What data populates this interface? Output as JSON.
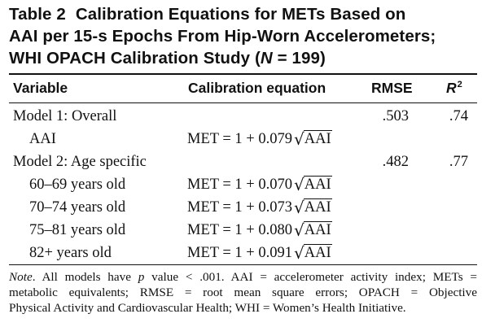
{
  "title": {
    "label": "Table 2",
    "line1": "Calibration Equations for METs Based on",
    "line2": "AAI per 15-s Epochs From Hip-Worn Accelerometers;",
    "line3_prefix": "WHI OPACH Calibration Study (",
    "line3_var": "N",
    "line3_suffix": " = 199)"
  },
  "header": {
    "variable": "Variable",
    "equation": "Calibration equation",
    "rmse": "RMSE",
    "r2_base": "R",
    "r2_sup": "2"
  },
  "rows": [
    {
      "variable": "Model 1: Overall",
      "equation_prefix": "",
      "radicand": "",
      "rmse": ".503",
      "r2": ".74"
    },
    {
      "variable": "AAI",
      "equation_prefix": "MET = 1 + 0.079",
      "radicand": "AAI",
      "rmse": "",
      "r2": ""
    },
    {
      "variable": "Model 2: Age specific",
      "equation_prefix": "",
      "radicand": "",
      "rmse": ".482",
      "r2": ".77"
    },
    {
      "variable": "60–69 years old",
      "equation_prefix": "MET = 1 + 0.070",
      "radicand": "AAI",
      "rmse": "",
      "r2": ""
    },
    {
      "variable": "70–74 years old",
      "equation_prefix": "MET = 1 + 0.073",
      "radicand": "AAI",
      "rmse": "",
      "r2": ""
    },
    {
      "variable": "75–81 years old",
      "equation_prefix": "MET = 1 + 0.080",
      "radicand": "AAI",
      "rmse": "",
      "r2": ""
    },
    {
      "variable": "82+ years old",
      "equation_prefix": "MET = 1 + 0.091",
      "radicand": "AAI",
      "rmse": "",
      "r2": ""
    }
  ],
  "note": {
    "label": "Note",
    "line1_a": ". All models have ",
    "line1_var": "p",
    "line1_b": " value < .001. AAI = accelerometer activity index; METs =",
    "line2": "metabolic equivalents; RMSE = root mean square errors; OPACH = Objective",
    "line3": "Physical Activity and Cardiovascular Health; WHI = Women’s Health Initiative."
  }
}
